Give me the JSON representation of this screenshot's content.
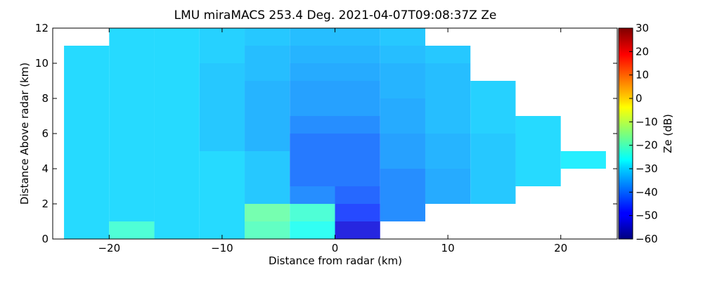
{
  "chart_data": {
    "type": "heatmap",
    "title": "LMU miraMACS 253.4 Deg. 2021-04-07T09:08:37Z  Ze",
    "x_label": "Distance from radar (km)",
    "y_label": "Distance Above radar  (km)",
    "colorbar_label": "Ze (dB)",
    "x": [
      -22,
      -18,
      -14,
      -10,
      -6,
      -2,
      2,
      6,
      10,
      14,
      18,
      22
    ],
    "y": [
      0.5,
      1.5,
      2.5,
      3.5,
      4.5,
      5.5,
      6.5,
      7.5,
      8.5,
      9.5,
      10.5,
      11.5
    ],
    "z": [
      [
        -30,
        -22,
        -30,
        -30,
        -20,
        -25,
        -52,
        null,
        null,
        null,
        null,
        null
      ],
      [
        -30,
        -30,
        -30,
        -30,
        -18,
        -22,
        -45,
        -38,
        null,
        null,
        null,
        null
      ],
      [
        -30,
        -30,
        -30,
        -30,
        -32,
        -38,
        -42,
        -38,
        -35,
        -32,
        null,
        null
      ],
      [
        -30,
        -30,
        -30,
        -30,
        -32,
        -40,
        -40,
        -38,
        -35,
        -32,
        -30,
        null
      ],
      [
        -30,
        -30,
        -30,
        -30,
        -32,
        -40,
        -40,
        -36,
        -34,
        -32,
        -30,
        -28
      ],
      [
        -30,
        -30,
        -30,
        -32,
        -34,
        -40,
        -40,
        -36,
        -34,
        -32,
        -30,
        null
      ],
      [
        -30,
        -30,
        -30,
        -32,
        -34,
        -38,
        -38,
        -35,
        -33,
        -31,
        -30,
        null
      ],
      [
        -30,
        -30,
        -30,
        -32,
        -34,
        -36,
        -36,
        -35,
        -33,
        -31,
        null,
        null
      ],
      [
        -30,
        -30,
        -30,
        -32,
        -34,
        -36,
        -36,
        -34,
        -33,
        -31,
        null,
        null
      ],
      [
        -30,
        -30,
        -30,
        -32,
        -33,
        -35,
        -35,
        -34,
        -33,
        null,
        null,
        null
      ],
      [
        -30,
        -30,
        -30,
        -31,
        -33,
        -34,
        -34,
        -33,
        -32,
        null,
        null,
        null
      ],
      [
        null,
        -30,
        -30,
        -31,
        -32,
        -33,
        -33,
        -32,
        null,
        null,
        null,
        null
      ]
    ],
    "cell_width": 4,
    "cell_height": 1,
    "xlim": [
      -25,
      25
    ],
    "ylim": [
      0,
      12
    ],
    "clim": [
      -60,
      30
    ],
    "xticks": [
      {
        "value": -20,
        "label": "−20"
      },
      {
        "value": -10,
        "label": "−10"
      },
      0,
      10,
      20
    ],
    "yticks": [
      0,
      2,
      4,
      6,
      8,
      10,
      12
    ],
    "cticks": [
      {
        "value": -60,
        "label": "−60"
      },
      {
        "value": -50,
        "label": "−50"
      },
      {
        "value": -40,
        "label": "−40"
      },
      {
        "value": -30,
        "label": "−30"
      },
      {
        "value": -20,
        "label": "−20"
      },
      {
        "value": -10,
        "label": "−10"
      },
      0,
      10,
      20,
      30
    ],
    "colormap": "jet"
  }
}
